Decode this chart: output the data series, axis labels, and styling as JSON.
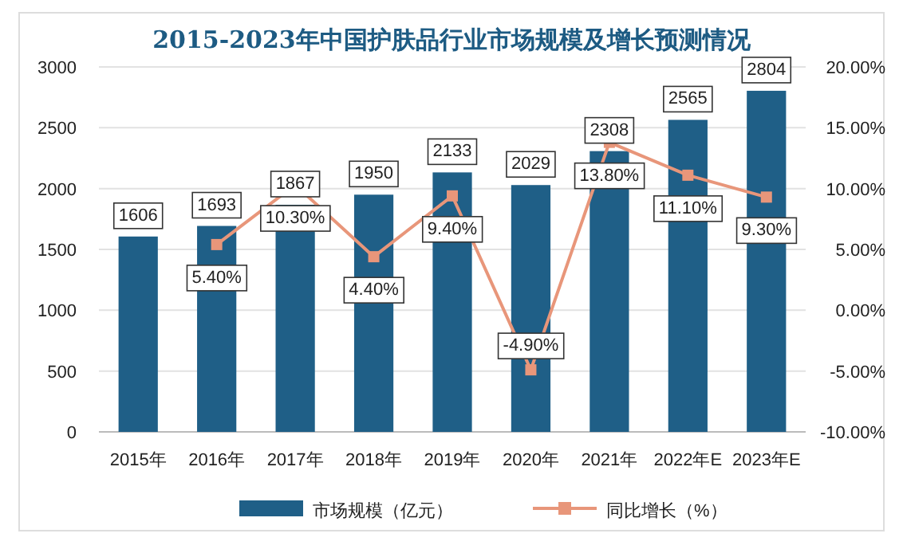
{
  "chart_data": {
    "type": "bar",
    "title": "2015-2023年中国护肤品行业市场规模及增长预测情况",
    "categories": [
      "2015年",
      "2016年",
      "2017年",
      "2018年",
      "2019年",
      "2020年",
      "2021年",
      "2022年E",
      "2023年E"
    ],
    "series": [
      {
        "name": "市场规模（亿元）",
        "color": "#1f5f87",
        "values": [
          1606,
          1693,
          1867,
          1950,
          2133,
          2029,
          2308,
          2565,
          2804
        ],
        "value_labels": [
          "1606",
          "1693",
          "1867",
          "1950",
          "2133",
          "2029",
          "2308",
          "2565",
          "2804"
        ]
      },
      {
        "name": "同比增长（%）",
        "type": "line",
        "axis": "y2",
        "color": "#e8967a",
        "marker": "square",
        "values": [
          null,
          5.4,
          10.3,
          4.4,
          9.4,
          -4.9,
          13.8,
          11.1,
          9.3
        ],
        "value_labels": [
          null,
          "5.40%",
          "10.30%",
          "4.40%",
          "9.40%",
          "-4.90%",
          "13.80%",
          "11.10%",
          "9.30%"
        ]
      }
    ],
    "ylim": [
      0,
      3000
    ],
    "yticks": [
      0,
      500,
      1000,
      1500,
      2000,
      2500,
      3000
    ],
    "y2lim": [
      -10,
      20
    ],
    "y2ticks": [
      {
        "value": -10,
        "label": "-10.00%"
      },
      {
        "value": -5,
        "label": "-5.00%"
      },
      {
        "value": 0,
        "label": "0.00%"
      },
      {
        "value": 5,
        "label": "5.00%"
      },
      {
        "value": 10,
        "label": "10.00%"
      },
      {
        "value": 15,
        "label": "15.00%"
      },
      {
        "value": 20,
        "label": "20.00%"
      }
    ],
    "grid": "y",
    "legend": "bottom"
  }
}
